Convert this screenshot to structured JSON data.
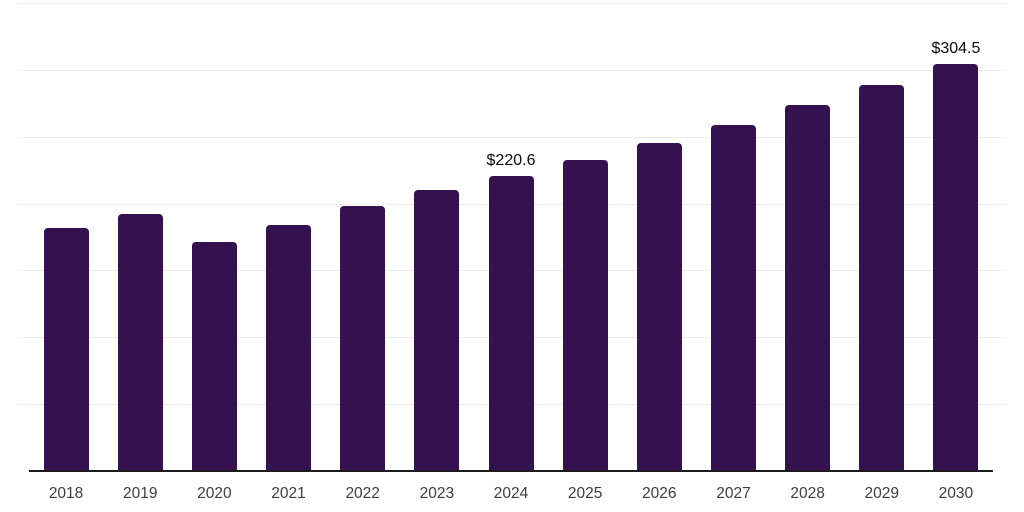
{
  "chart": {
    "background_color": "#ffffff",
    "bar_color": "#351150",
    "grid_color": "#ececec",
    "axis_line_color": "#1c1c1c",
    "tick_label_color": "#3d3d3d",
    "value_label_color": "#0b0b0b"
  },
  "chart_data": {
    "type": "bar",
    "title": "",
    "xlabel": "",
    "ylabel": "",
    "categories": [
      "2018",
      "2019",
      "2020",
      "2021",
      "2022",
      "2023",
      "2024",
      "2025",
      "2026",
      "2027",
      "2028",
      "2029",
      "2030"
    ],
    "values": [
      182,
      192,
      171.5,
      184,
      198.5,
      210,
      220.6,
      232.5,
      245,
      259,
      273.5,
      289,
      304.5
    ],
    "bar_labels": [
      "",
      "",
      "",
      "",
      "",
      "",
      "$220.6",
      "",
      "",
      "",
      "",
      "",
      "$304.5"
    ],
    "ylim": [
      0,
      350
    ],
    "grid_step": 50,
    "grid": true,
    "y_axis_labels_shown": false,
    "legend": false,
    "legend_position": "none"
  }
}
